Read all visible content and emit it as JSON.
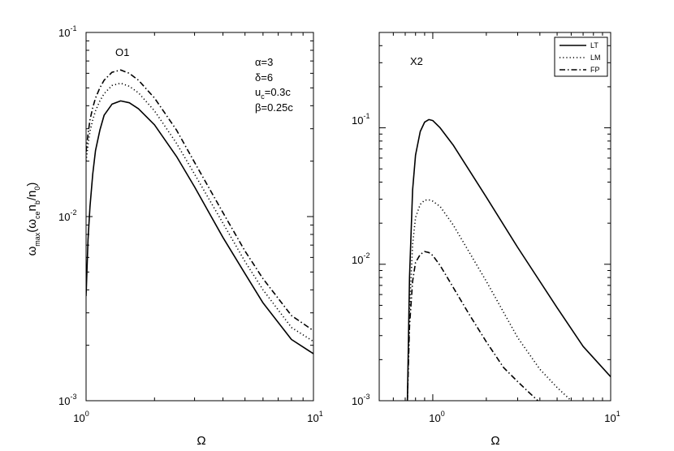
{
  "chart_data": [
    {
      "type": "line",
      "panel_label": "O1",
      "xlabel": "Ω",
      "ylabel": {
        "base": "ω",
        "sub1": "max",
        "open": "(ω",
        "sub2": "ce",
        "mid": "n",
        "sub3": "b",
        "slash": "/n",
        "sub4": "0",
        "close": ")"
      },
      "xscale": "log",
      "yscale": "log",
      "xlim": [
        1,
        10
      ],
      "ylim": [
        0.001,
        0.1
      ],
      "x_ticks": [
        {
          "value": 1,
          "base": "10",
          "exp": "0"
        },
        {
          "value": 10,
          "base": "10",
          "exp": "1"
        }
      ],
      "y_ticks": [
        {
          "value": 0.001,
          "base": "10",
          "exp": "-3"
        },
        {
          "value": 0.01,
          "base": "10",
          "exp": "-2"
        },
        {
          "value": 0.1,
          "base": "10",
          "exp": "-1"
        }
      ],
      "annotations": {
        "alpha": "α=3",
        "delta": "δ=6",
        "u": {
          "base": "u",
          "sub": "c",
          "rest": "=0.3c"
        },
        "beta": "β=0.25c"
      },
      "legend": "none",
      "grid": false,
      "series": [
        {
          "style": "solid",
          "x": [
            1.0,
            1.02,
            1.04,
            1.07,
            1.1,
            1.15,
            1.2,
            1.3,
            1.42,
            1.55,
            1.7,
            2.0,
            2.5,
            3.0,
            4.0,
            5.0,
            6.0,
            8.0,
            10.0
          ],
          "y": [
            0.0037,
            0.0075,
            0.0113,
            0.017,
            0.0228,
            0.0295,
            0.0355,
            0.0408,
            0.0425,
            0.0415,
            0.0385,
            0.0315,
            0.0212,
            0.0145,
            0.0077,
            0.0049,
            0.0034,
            0.00215,
            0.0018
          ]
        },
        {
          "style": "dotted",
          "x": [
            1.0,
            1.02,
            1.04,
            1.07,
            1.1,
            1.15,
            1.2,
            1.3,
            1.42,
            1.55,
            1.7,
            2.0,
            2.5,
            3.0,
            4.0,
            5.0,
            6.0,
            8.0,
            10.0
          ],
          "y": [
            0.02,
            0.0245,
            0.029,
            0.0335,
            0.0375,
            0.0425,
            0.0465,
            0.0515,
            0.053,
            0.051,
            0.047,
            0.0375,
            0.025,
            0.017,
            0.0092,
            0.0057,
            0.004,
            0.0025,
            0.0021
          ]
        },
        {
          "style": "dashdot",
          "x": [
            1.0,
            1.02,
            1.04,
            1.07,
            1.1,
            1.15,
            1.2,
            1.3,
            1.42,
            1.55,
            1.7,
            2.0,
            2.5,
            3.0,
            4.0,
            5.0,
            6.0,
            8.0,
            10.0
          ],
          "y": [
            0.0225,
            0.028,
            0.0335,
            0.039,
            0.044,
            0.05,
            0.055,
            0.0608,
            0.0625,
            0.06,
            0.055,
            0.044,
            0.0295,
            0.0197,
            0.0105,
            0.0065,
            0.0046,
            0.0029,
            0.0024
          ]
        }
      ]
    },
    {
      "type": "line",
      "panel_label": "X2",
      "xlabel": "Ω",
      "xscale": "log",
      "yscale": "log",
      "xlim": [
        0.5,
        10
      ],
      "ylim": [
        0.001,
        0.5
      ],
      "x_ticks": [
        {
          "value": 1,
          "base": "10",
          "exp": "0"
        },
        {
          "value": 10,
          "base": "10",
          "exp": "1"
        }
      ],
      "y_ticks": [
        {
          "value": 0.001,
          "base": "10",
          "exp": "-3"
        },
        {
          "value": 0.01,
          "base": "10",
          "exp": "-2"
        },
        {
          "value": 0.1,
          "base": "10",
          "exp": "-1"
        }
      ],
      "legend": {
        "position": "top-right",
        "entries": [
          "LT",
          "LM",
          "FP"
        ]
      },
      "grid": false,
      "series": [
        {
          "name": "LT",
          "style": "solid",
          "x": [
            0.72,
            0.74,
            0.77,
            0.8,
            0.85,
            0.9,
            0.95,
            1.0,
            1.1,
            1.3,
            1.6,
            2.0,
            3.0,
            5.0,
            7.0,
            10.0
          ],
          "y": [
            0.001,
            0.008,
            0.035,
            0.063,
            0.094,
            0.11,
            0.115,
            0.113,
            0.1,
            0.075,
            0.049,
            0.031,
            0.0133,
            0.0048,
            0.0025,
            0.0015
          ]
        },
        {
          "name": "LM",
          "style": "dotted",
          "x": [
            0.72,
            0.74,
            0.77,
            0.8,
            0.85,
            0.9,
            0.95,
            1.0,
            1.1,
            1.3,
            1.6,
            2.0,
            3.0,
            4.0,
            5.0,
            6.0
          ],
          "y": [
            0.001,
            0.0045,
            0.014,
            0.022,
            0.0275,
            0.0295,
            0.0297,
            0.029,
            0.0265,
            0.0195,
            0.0123,
            0.0075,
            0.0029,
            0.0017,
            0.00125,
            0.001
          ]
        },
        {
          "name": "FP",
          "style": "dashdot",
          "x": [
            0.72,
            0.74,
            0.77,
            0.8,
            0.85,
            0.9,
            0.95,
            1.0,
            1.1,
            1.3,
            1.6,
            2.0,
            2.5,
            3.0,
            3.5,
            3.9
          ],
          "y": [
            0.001,
            0.0035,
            0.0075,
            0.0103,
            0.0118,
            0.0124,
            0.0122,
            0.0116,
            0.0098,
            0.0068,
            0.0043,
            0.0027,
            0.00175,
            0.00138,
            0.00114,
            0.001
          ]
        }
      ]
    }
  ]
}
